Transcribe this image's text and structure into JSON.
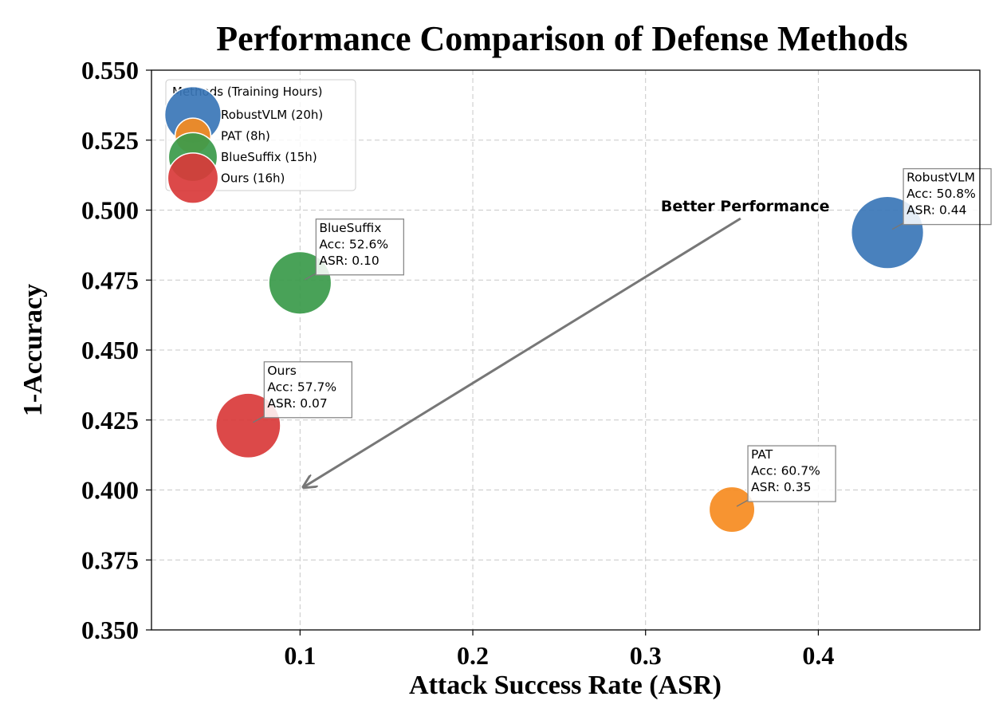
{
  "chart_data": {
    "type": "scatter",
    "title": "Performance Comparison of Defense Methods",
    "xlabel": "Attack Success Rate (ASR)",
    "ylabel": "1-Accuracy",
    "xlim": [
      0.014,
      0.4935
    ],
    "ylim": [
      0.35,
      0.55
    ],
    "x_ticks": [
      0.1,
      0.2,
      0.3,
      0.4
    ],
    "x_tick_labels": [
      "0.1",
      "0.2",
      "0.3",
      "0.4"
    ],
    "y_ticks": [
      0.35,
      0.375,
      0.4,
      0.425,
      0.45,
      0.475,
      0.5,
      0.525,
      0.55
    ],
    "y_tick_labels": [
      "0.350",
      "0.375",
      "0.400",
      "0.425",
      "0.450",
      "0.475",
      "0.500",
      "0.525",
      "0.550"
    ],
    "grid": true,
    "legend_title": "Methods (Training Hours)",
    "legend_position": "top-left",
    "bubble_size_encodes": "training hours",
    "series": [
      {
        "name": "RobustVLM (20h)",
        "x": 0.44,
        "y": 0.492,
        "hours": 20,
        "color": "#3a76b7",
        "annotation": [
          "RobustVLM",
          "Acc: 50.8%",
          "ASR: 0.44"
        ]
      },
      {
        "name": "PAT (8h)",
        "x": 0.35,
        "y": 0.393,
        "hours": 8,
        "color": "#f68b1f",
        "annotation": [
          "PAT",
          "Acc: 60.7%",
          "ASR: 0.35"
        ]
      },
      {
        "name": "BlueSuffix (15h)",
        "x": 0.1,
        "y": 0.474,
        "hours": 15,
        "color": "#3a9a4a",
        "annotation": [
          "BlueSuffix",
          "Acc: 52.6%",
          "ASR: 0.10"
        ]
      },
      {
        "name": "Ours (16h)",
        "x": 0.07,
        "y": 0.423,
        "hours": 16,
        "color": "#d93a3a",
        "annotation": [
          "Ours",
          "Acc: 57.7%",
          "ASR: 0.07"
        ]
      }
    ],
    "arrow": {
      "label": "Better Performance",
      "from": [
        0.355,
        0.497
      ],
      "to": [
        0.102,
        0.401
      ]
    }
  }
}
